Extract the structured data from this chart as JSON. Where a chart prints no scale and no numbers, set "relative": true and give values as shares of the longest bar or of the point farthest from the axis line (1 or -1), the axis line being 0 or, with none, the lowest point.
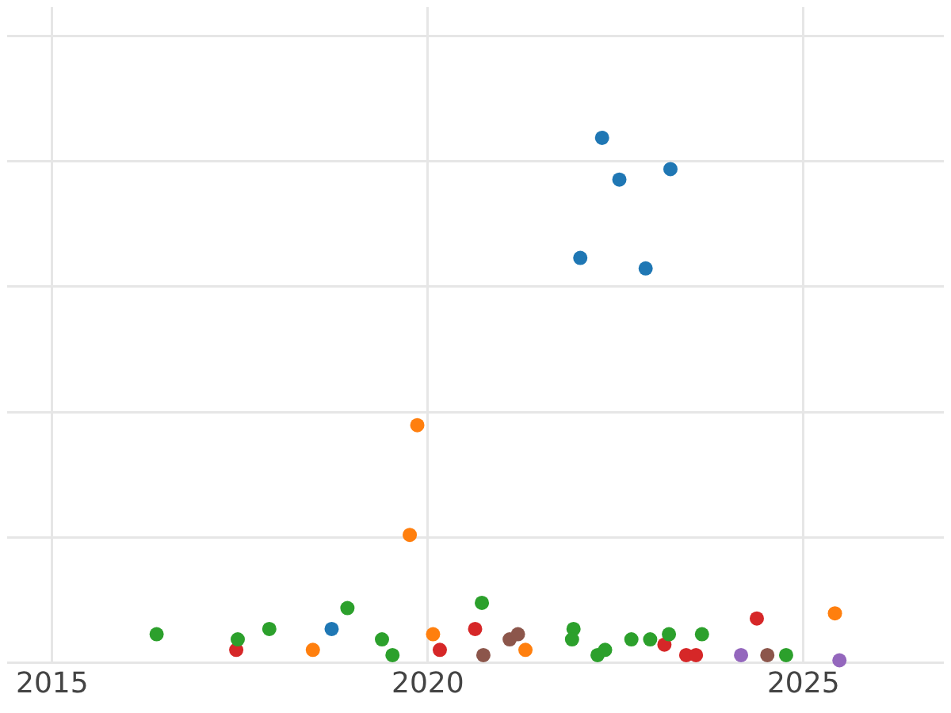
{
  "chart_data": {
    "type": "scatter",
    "relative": true,
    "grid": true,
    "legend": false,
    "marker": "circle",
    "xlim": [
      2014.4,
      2026.87
    ],
    "xticks": [
      2015,
      2020,
      2025
    ],
    "series": [
      {
        "color": "#1f77b4",
        "x": [
          2022.32,
          2022.55,
          2023.23,
          2022.03,
          2022.9,
          2018.72
        ],
        "values": [
          1.0,
          0.92,
          0.94,
          0.77,
          0.75,
          0.06
        ]
      },
      {
        "color": "#ff7f0e",
        "x": [
          2019.86,
          2019.76,
          2018.47,
          2020.07,
          2021.3,
          2025.42
        ],
        "values": [
          0.45,
          0.24,
          0.02,
          0.05,
          0.02,
          0.09
        ]
      },
      {
        "color": "#2ca02c",
        "x": [
          2016.39,
          2017.47,
          2017.89,
          2018.93,
          2019.39,
          2019.53,
          2020.72,
          2021.94,
          2021.92,
          2022.26,
          2022.36,
          2022.71,
          2022.96,
          2023.21,
          2023.65,
          2024.77
        ],
        "values": [
          0.05,
          0.04,
          0.06,
          0.1,
          0.04,
          0.01,
          0.11,
          0.06,
          0.04,
          0.01,
          0.02,
          0.04,
          0.04,
          0.05,
          0.05,
          0.01
        ]
      },
      {
        "color": "#d62728",
        "x": [
          2017.45,
          2020.16,
          2020.63,
          2023.15,
          2023.44,
          2023.57,
          2024.38
        ],
        "values": [
          0.02,
          0.02,
          0.06,
          0.03,
          0.01,
          0.01,
          0.08
        ]
      },
      {
        "color": "#8c564b",
        "x": [
          2020.74,
          2021.09,
          2021.2,
          2024.52
        ],
        "values": [
          0.01,
          0.04,
          0.05,
          0.01
        ]
      },
      {
        "color": "#9467bd",
        "x": [
          2024.17,
          2025.48
        ],
        "values": [
          0.01,
          0.0
        ]
      }
    ]
  }
}
